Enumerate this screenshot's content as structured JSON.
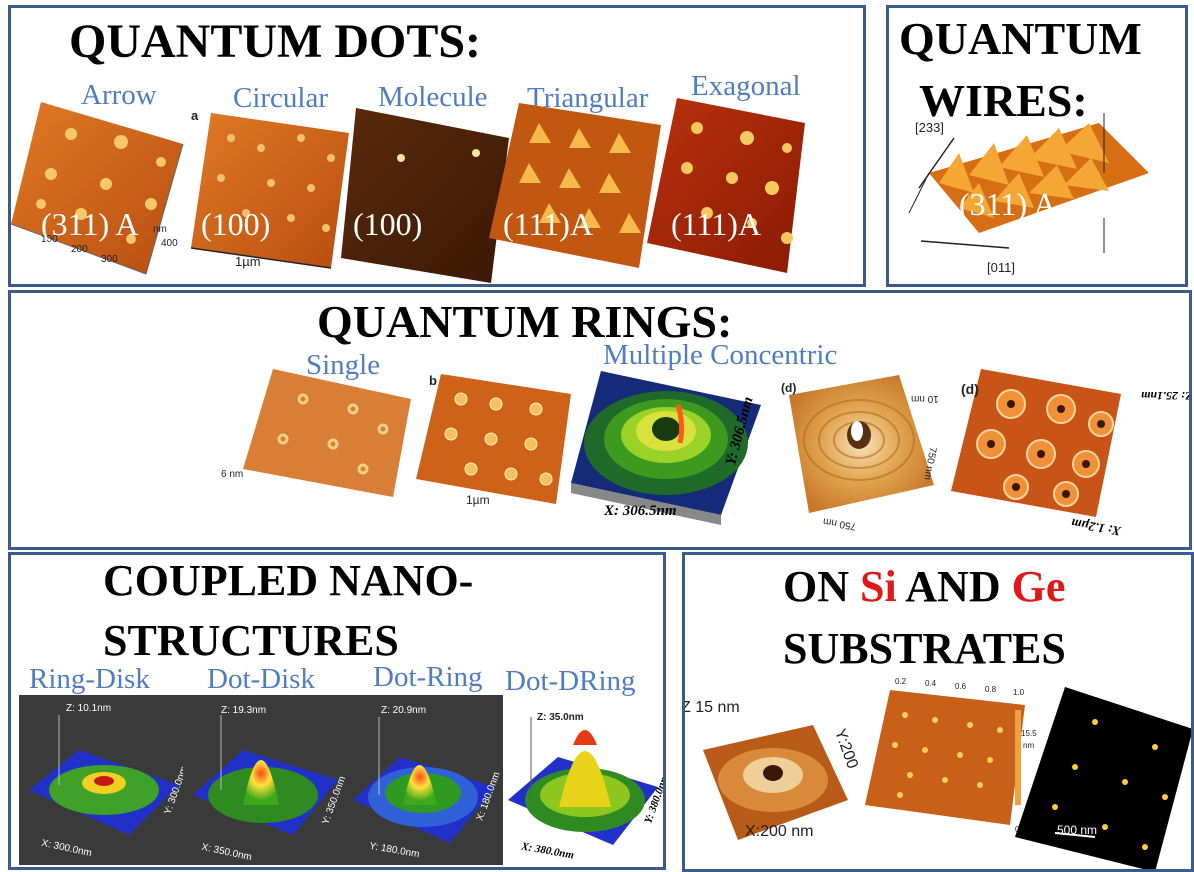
{
  "dots": {
    "title": "QUANTUM DOTS:",
    "items": [
      {
        "label": "Arrow",
        "overlay": "(311) A"
      },
      {
        "label": "Circular",
        "overlay": "(100)"
      },
      {
        "label": "Molecule",
        "overlay": "(100)"
      },
      {
        "label": "Triangular",
        "overlay": "(111)A"
      },
      {
        "label": "Exagonal",
        "overlay": "(111)A"
      }
    ],
    "axis": {
      "nm": "nm",
      "tick100": "100",
      "tick200": "200",
      "tick300": "300",
      "tick400": "400",
      "um": "1µm",
      "panel_a": "a"
    }
  },
  "wires": {
    "title_line1": "QUANTUM",
    "title_line2": "WIRES:",
    "overlay": "(311) A",
    "dir_top": "[233]",
    "dir_bottom": "[011]"
  },
  "rings": {
    "title": "QUANTUM RINGS:",
    "label_single": "Single",
    "label_multiple": "Multiple Concentric",
    "axis": {
      "b": "b",
      "six_nm": "6 nm",
      "um": "1µm",
      "x_size": "X: 306.5nm",
      "y_size": "Y: 306.5nm",
      "d1": "(d)",
      "d2": "(d)",
      "ten_nm": "10 nm",
      "n750a": "750 nm",
      "n750b": "750 nm",
      "z_size": "Z: 25.1nm",
      "x_um": "X: 1.2µm"
    }
  },
  "coupled": {
    "title_line1": "COUPLED NANO-",
    "title_line2": "STRUCTURES",
    "items": [
      {
        "label": "Ring-Disk",
        "z": "Z: 10.1nm",
        "x": "X: 300.0nm",
        "y": "Y: 300.0nm"
      },
      {
        "label": "Dot-Disk",
        "z": "Z: 19.3nm",
        "x": "X: 350.0nm",
        "y": "Y: 350.0nm"
      },
      {
        "label": "Dot-Ring",
        "z": "Z: 20.9nm",
        "x": "Y: 180.0nm",
        "y": "X: 180.0nm"
      },
      {
        "label": "Dot-DRing",
        "z": "Z: 35.0nm",
        "x": "X: 380.0nm",
        "y": "Y: 380.0nm"
      }
    ]
  },
  "substrates": {
    "title_pre": "ON ",
    "si": "Si",
    "title_mid": " AND ",
    "ge": "Ge",
    "title_line2": "SUBSTRATES",
    "z_label": "Z 15 nm",
    "x_label": "X:200 nm",
    "y_label": "Y:200",
    "scale": "500 nm",
    "colorbar_max": "15.5",
    "colorbar_unit": "nm",
    "colorbar_min": "0.0",
    "ticks": [
      "0.2",
      "0.4",
      "0.6",
      "0.8",
      "1.0"
    ]
  },
  "colors": {
    "border": "#3a5a8c",
    "caption": "#4f7dbf",
    "accent_red": "#e01818"
  }
}
